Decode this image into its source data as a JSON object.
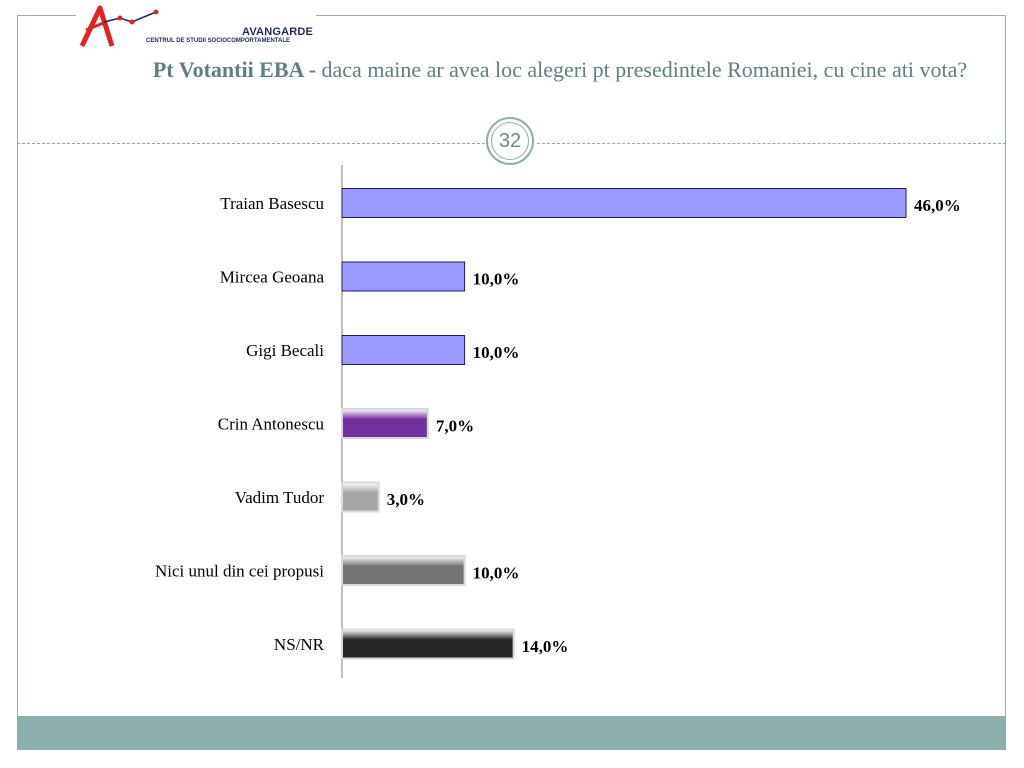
{
  "logo": {
    "name": "AVANGARDE",
    "subtitle": "CENTRUL DE STUDII SOCIOCOMPORTAMENTALE",
    "colors": {
      "primary": "#e02424",
      "secondary": "#1f2a57"
    }
  },
  "title": {
    "bold": "Pt Votantii EBA -",
    "rest": " daca maine ar avea loc alegeri pt presedintele Romaniei, cu cine ati vota?"
  },
  "page_number": "32",
  "colors": {
    "accent": "#8eadad",
    "title": "#5f7f80"
  },
  "chart_data": {
    "type": "bar",
    "orientation": "horizontal",
    "categories": [
      "Traian Basescu",
      "Mircea Geoana",
      "Gigi Becali",
      "Crin Antonescu",
      "Vadim Tudor",
      "Nici unul din cei propusi",
      "NS/NR"
    ],
    "values": [
      46.0,
      10.0,
      10.0,
      7.0,
      3.0,
      10.0,
      14.0
    ],
    "value_labels": [
      "46,0%",
      "10,0%",
      "10,0%",
      "7,0%",
      "3,0%",
      "10,0%",
      "14,0%"
    ],
    "bar_colors": [
      "#9999ff",
      "#9999ff",
      "#9999ff",
      "#7030a0",
      "#a6a6a6",
      "#737373",
      "#262626"
    ],
    "title": "",
    "xlabel": "",
    "ylabel": "",
    "xlim": [
      0,
      46
    ],
    "grid": false,
    "legend": "none"
  }
}
